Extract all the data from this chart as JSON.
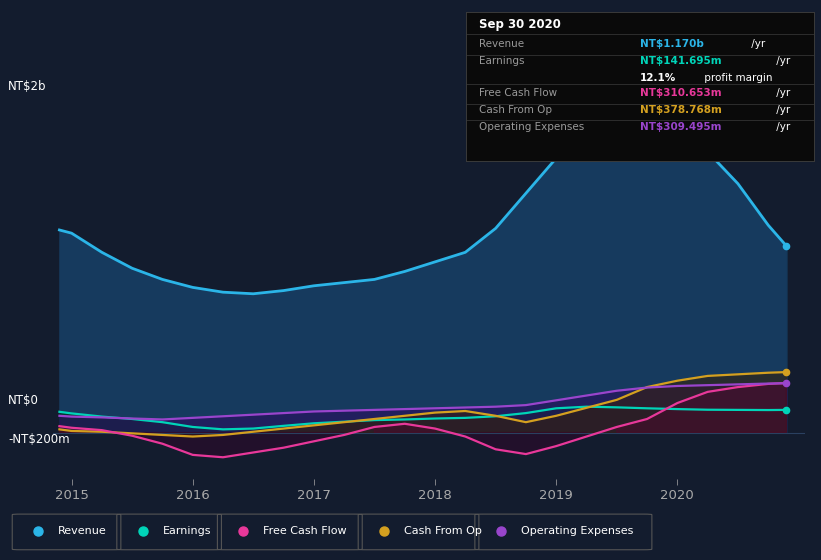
{
  "bg_color": "#131c2e",
  "plot_bg": "#131c2e",
  "info_box_bg": "#0a0a0a",
  "grid_color": "#1e3050",
  "zero_line_color": "#2a4060",
  "years": [
    2014.9,
    2015.0,
    2015.25,
    2015.5,
    2015.75,
    2016.0,
    2016.25,
    2016.5,
    2016.75,
    2017.0,
    2017.25,
    2017.5,
    2017.75,
    2018.0,
    2018.25,
    2018.5,
    2018.75,
    2019.0,
    2019.25,
    2019.5,
    2019.75,
    2020.0,
    2020.25,
    2020.5,
    2020.75,
    2020.9
  ],
  "revenue": [
    1270,
    1250,
    1130,
    1030,
    960,
    910,
    880,
    870,
    890,
    920,
    940,
    960,
    1010,
    1070,
    1130,
    1280,
    1500,
    1720,
    1900,
    1970,
    1970,
    1920,
    1760,
    1560,
    1300,
    1170
  ],
  "earnings": [
    130,
    120,
    100,
    85,
    65,
    35,
    20,
    25,
    42,
    58,
    68,
    78,
    82,
    88,
    92,
    102,
    122,
    152,
    162,
    158,
    152,
    147,
    143,
    142,
    141,
    142
  ],
  "free_cash_flow": [
    40,
    30,
    15,
    -20,
    -70,
    -140,
    -155,
    -125,
    -95,
    -55,
    -15,
    35,
    55,
    25,
    -25,
    -105,
    -135,
    -85,
    -25,
    35,
    85,
    185,
    255,
    285,
    305,
    311
  ],
  "cash_from_op": [
    20,
    10,
    5,
    -5,
    -15,
    -25,
    -15,
    5,
    25,
    45,
    65,
    85,
    105,
    125,
    135,
    105,
    65,
    105,
    155,
    205,
    285,
    325,
    355,
    365,
    375,
    379
  ],
  "operating_expenses": [
    105,
    100,
    95,
    88,
    82,
    92,
    102,
    112,
    122,
    132,
    137,
    142,
    147,
    152,
    157,
    162,
    172,
    202,
    232,
    262,
    282,
    292,
    297,
    302,
    307,
    309
  ],
  "revenue_color": "#2bb5e8",
  "earnings_color": "#00d4b8",
  "free_cash_flow_color": "#e8389a",
  "cash_from_op_color": "#d4a020",
  "operating_expenses_color": "#9945cc",
  "revenue_fill": "#163a5e",
  "earnings_fill": "#073530",
  "ylim_min": -290,
  "ylim_max": 2150,
  "xticks": [
    2015,
    2016,
    2017,
    2018,
    2019,
    2020
  ],
  "xlim_min": 2014.85,
  "xlim_max": 2021.05,
  "ylabel_2b_y": 2000,
  "ylabel_0_y": 0,
  "ylabel_neg200_y": -200,
  "legend_items": [
    "Revenue",
    "Earnings",
    "Free Cash Flow",
    "Cash From Op",
    "Operating Expenses"
  ],
  "legend_colors": [
    "#2bb5e8",
    "#00d4b8",
    "#e8389a",
    "#d4a020",
    "#9945cc"
  ],
  "info_title": "Sep 30 2020",
  "info_rows": [
    {
      "label": "Revenue",
      "value": "NT$1.170b",
      "value_color": "#2bb5e8",
      "suffix": " /yr",
      "sub": null
    },
    {
      "label": "Earnings",
      "value": "NT$141.695m",
      "value_color": "#00d4b8",
      "suffix": " /yr",
      "sub": "12.1% profit margin"
    },
    {
      "label": "Free Cash Flow",
      "value": "NT$310.653m",
      "value_color": "#e8389a",
      "suffix": " /yr",
      "sub": null
    },
    {
      "label": "Cash From Op",
      "value": "NT$378.768m",
      "value_color": "#d4a020",
      "suffix": " /yr",
      "sub": null
    },
    {
      "label": "Operating Expenses",
      "value": "NT$309.495m",
      "value_color": "#9945cc",
      "suffix": " /yr",
      "sub": null
    }
  ]
}
